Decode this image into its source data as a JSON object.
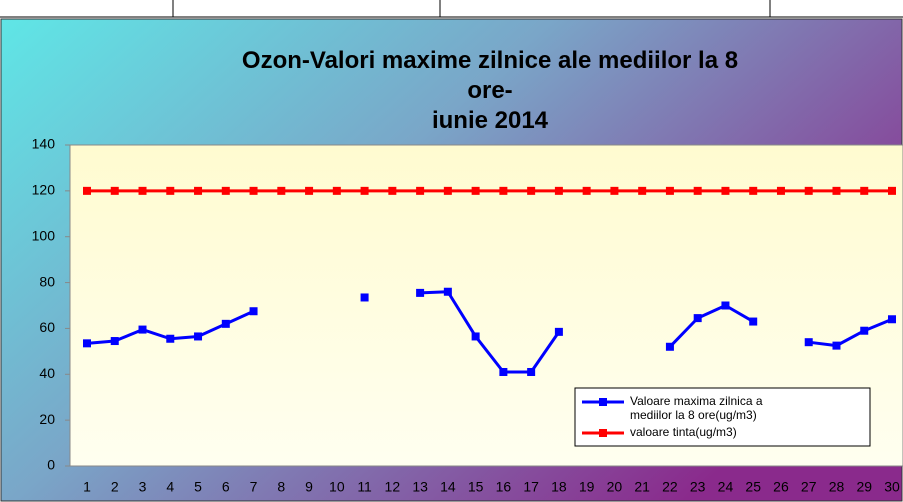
{
  "chart_data": {
    "type": "line",
    "title": "Ozon-Valori maxime zilnice ale mediilor la 8\nore-\niunie 2014",
    "categories": [
      "1",
      "2",
      "3",
      "4",
      "5",
      "6",
      "7",
      "8",
      "9",
      "10",
      "11",
      "12",
      "13",
      "14",
      "15",
      "16",
      "17",
      "18",
      "19",
      "20",
      "21",
      "22",
      "23",
      "24",
      "25",
      "26",
      "27",
      "28",
      "29",
      "30"
    ],
    "series": [
      {
        "name": "Valoare maxima zilnica a\nmediilor  la 8 ore(ug/m3)",
        "color": "#0000ff",
        "values": [
          53.5,
          54.5,
          59.5,
          55.5,
          56.5,
          62,
          67.5,
          null,
          null,
          null,
          73.5,
          null,
          75.5,
          76,
          56.5,
          41,
          41,
          58.5,
          null,
          null,
          null,
          52,
          64.5,
          70,
          63,
          null,
          54,
          52.5,
          59,
          64
        ]
      },
      {
        "name": "valoare tinta(ug/m3)",
        "color": "#ff0000",
        "values": [
          120,
          120,
          120,
          120,
          120,
          120,
          120,
          120,
          120,
          120,
          120,
          120,
          120,
          120,
          120,
          120,
          120,
          120,
          120,
          120,
          120,
          120,
          120,
          120,
          120,
          120,
          120,
          120,
          120,
          120
        ]
      }
    ],
    "ylim": [
      0,
      140
    ],
    "yticks": [
      0,
      20,
      40,
      60,
      80,
      100,
      120,
      140
    ],
    "grid": false,
    "legend": "lower right"
  }
}
